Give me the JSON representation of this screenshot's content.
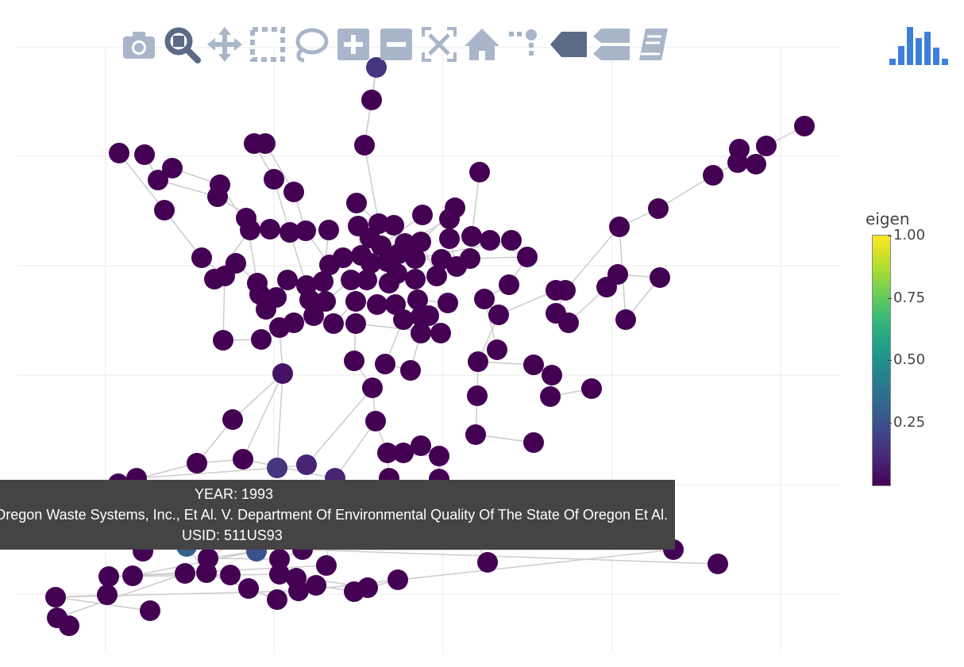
{
  "toolbar": {
    "buttons": [
      {
        "name": "camera-icon",
        "label": "Download plot as a png"
      },
      {
        "name": "zoom-icon",
        "label": "Zoom"
      },
      {
        "name": "pan-icon",
        "label": "Pan"
      },
      {
        "name": "box-select-icon",
        "label": "Box Select"
      },
      {
        "name": "lasso-select-icon",
        "label": "Lasso Select"
      },
      {
        "name": "zoom-in-icon",
        "label": "Zoom in"
      },
      {
        "name": "zoom-out-icon",
        "label": "Zoom out"
      },
      {
        "name": "autoscale-icon",
        "label": "Autoscale"
      },
      {
        "name": "home-icon",
        "label": "Reset axes"
      },
      {
        "name": "spike-lines-icon",
        "label": "Toggle Spike Lines"
      },
      {
        "name": "hover-closest-icon",
        "label": "Show closest data on hover"
      },
      {
        "name": "hover-compare-icon",
        "label": "Compare data on hover"
      },
      {
        "name": "edit-chart-icon",
        "label": "Edit chart"
      }
    ],
    "active": "zoom-icon",
    "icon_color": "#a9b6c9",
    "active_color": "#5b6a85",
    "logo_color": "#3f7fdc",
    "logo_icon": "plotly-bars-logo-icon"
  },
  "tooltip": {
    "line1": "YEAR: 1993",
    "line2": "Oregon Waste Systems, Inc., Et Al. V. Department Of Environmental Quality Of The State Of Oregon Et Al.",
    "line3": "USID: 511US93"
  },
  "chart_data": {
    "type": "scatter",
    "title": "",
    "xlabel": "",
    "ylabel": "",
    "grid": true,
    "node_color": "#440154",
    "edge_color": "#cccccc",
    "colorbar": {
      "title": "eigen",
      "ticks": [
        "1.00",
        "0.75",
        "0.50",
        "0.25"
      ],
      "tick_values": [
        1.0,
        0.75,
        0.5,
        0.25
      ],
      "range": [
        0.0,
        1.0
      ],
      "colorscale": "viridis",
      "placement": "right"
    },
    "nodes": [
      [
        474,
        85,
        0.15
      ],
      [
        468,
        126,
        0.0
      ],
      [
        459,
        183,
        0.0
      ],
      [
        150,
        193,
        0.0
      ],
      [
        182,
        195,
        0.0
      ],
      [
        217,
        212,
        0.0
      ],
      [
        199,
        227,
        0.0
      ],
      [
        207,
        265,
        0.0
      ],
      [
        277,
        233,
        0.0
      ],
      [
        274,
        248,
        0.0
      ],
      [
        320,
        181,
        0.0
      ],
      [
        334,
        181,
        0.0
      ],
      [
        345,
        226,
        0.0
      ],
      [
        370,
        242,
        0.0
      ],
      [
        604,
        217,
        0.0
      ],
      [
        449,
        256,
        0.0
      ],
      [
        573,
        262,
        0.0
      ],
      [
        532,
        271,
        0.0
      ],
      [
        566,
        276,
        0.0
      ],
      [
        310,
        275,
        0.0
      ],
      [
        315,
        290,
        0.0
      ],
      [
        340,
        289,
        0.0
      ],
      [
        365,
        293,
        0.0
      ],
      [
        385,
        291,
        0.0
      ],
      [
        414,
        290,
        0.0
      ],
      [
        451,
        285,
        0.0
      ],
      [
        477,
        282,
        0.0
      ],
      [
        496,
        284,
        0.0
      ],
      [
        466,
        300,
        0.0
      ],
      [
        480,
        310,
        0.0
      ],
      [
        510,
        307,
        0.0
      ],
      [
        530,
        305,
        0.0
      ],
      [
        566,
        301,
        0.0
      ],
      [
        594,
        298,
        0.0
      ],
      [
        617,
        303,
        0.0
      ],
      [
        644,
        303,
        0.0
      ],
      [
        254,
        325,
        0.0
      ],
      [
        297,
        332,
        0.0
      ],
      [
        270,
        352,
        0.0
      ],
      [
        283,
        348,
        0.0
      ],
      [
        324,
        357,
        0.0
      ],
      [
        327,
        371,
        0.0
      ],
      [
        335,
        390,
        0.0
      ],
      [
        348,
        375,
        0.0
      ],
      [
        362,
        353,
        0.0
      ],
      [
        386,
        360,
        0.0
      ],
      [
        407,
        355,
        0.0
      ],
      [
        415,
        334,
        0.0
      ],
      [
        432,
        325,
        0.0
      ],
      [
        455,
        322,
        0.0
      ],
      [
        467,
        332,
        0.0
      ],
      [
        488,
        330,
        0.0
      ],
      [
        502,
        320,
        0.0
      ],
      [
        523,
        326,
        0.0
      ],
      [
        556,
        327,
        0.0
      ],
      [
        575,
        336,
        0.0
      ],
      [
        592,
        326,
        0.0
      ],
      [
        664,
        324,
        0.0
      ],
      [
        550,
        348,
        0.0
      ],
      [
        523,
        352,
        0.0
      ],
      [
        500,
        345,
        0.0
      ],
      [
        490,
        357,
        0.0
      ],
      [
        462,
        353,
        0.0
      ],
      [
        442,
        353,
        0.0
      ],
      [
        410,
        380,
        0.0
      ],
      [
        390,
        378,
        0.0
      ],
      [
        395,
        398,
        0.0
      ],
      [
        420,
        408,
        0.0
      ],
      [
        448,
        380,
        0.0
      ],
      [
        475,
        384,
        0.0
      ],
      [
        498,
        384,
        0.0
      ],
      [
        526,
        378,
        0.0
      ],
      [
        564,
        382,
        0.0
      ],
      [
        508,
        403,
        0.0
      ],
      [
        530,
        399,
        0.0
      ],
      [
        540,
        398,
        0.0
      ],
      [
        530,
        420,
        0.0
      ],
      [
        555,
        420,
        0.0
      ],
      [
        448,
        408,
        0.0
      ],
      [
        370,
        407,
        0.0
      ],
      [
        352,
        413,
        0.0
      ],
      [
        329,
        428,
        0.0
      ],
      [
        281,
        429,
        0.0
      ],
      [
        641,
        359,
        0.0
      ],
      [
        610,
        377,
        0.0
      ],
      [
        628,
        397,
        0.0
      ],
      [
        700,
        366,
        0.0
      ],
      [
        712,
        366,
        0.0
      ],
      [
        700,
        395,
        0.0
      ],
      [
        716,
        407,
        0.0
      ],
      [
        764,
        362,
        0.0
      ],
      [
        778,
        346,
        0.0
      ],
      [
        831,
        350,
        0.0
      ],
      [
        788,
        403,
        0.0
      ],
      [
        780,
        286,
        0.0
      ],
      [
        829,
        263,
        0.0
      ],
      [
        898,
        221,
        0.0
      ],
      [
        929,
        205,
        0.0
      ],
      [
        931,
        188,
        0.0
      ],
      [
        952,
        207,
        0.0
      ],
      [
        965,
        184,
        0.0
      ],
      [
        1013,
        159,
        0.0
      ],
      [
        356,
        471,
        0.05
      ],
      [
        446,
        455,
        0.0
      ],
      [
        485,
        459,
        0.0
      ],
      [
        517,
        467,
        0.0
      ],
      [
        602,
        456,
        0.0
      ],
      [
        626,
        441,
        0.0
      ],
      [
        672,
        460,
        0.0
      ],
      [
        695,
        473,
        0.0
      ],
      [
        693,
        500,
        0.0
      ],
      [
        745,
        490,
        0.0
      ],
      [
        601,
        499,
        0.0
      ],
      [
        469,
        489,
        0.0
      ],
      [
        293,
        529,
        0.0
      ],
      [
        473,
        531,
        0.0
      ],
      [
        599,
        548,
        0.0
      ],
      [
        672,
        558,
        0.0
      ],
      [
        488,
        571,
        0.0
      ],
      [
        508,
        571,
        0.0
      ],
      [
        530,
        562,
        0.0
      ],
      [
        553,
        575,
        0.0
      ],
      [
        553,
        604,
        0.0
      ],
      [
        490,
        603,
        0.0
      ],
      [
        248,
        584,
        0.0
      ],
      [
        306,
        579,
        0.0
      ],
      [
        349,
        590,
        0.15
      ],
      [
        386,
        586,
        0.1
      ],
      [
        422,
        603,
        0.1
      ],
      [
        149,
        610,
        0.0
      ],
      [
        172,
        603,
        0.0
      ],
      [
        180,
        695,
        0.0
      ],
      [
        235,
        689,
        0.3
      ],
      [
        262,
        704,
        0.0
      ],
      [
        323,
        695,
        0.25
      ],
      [
        352,
        705,
        0.0
      ],
      [
        381,
        693,
        0.0
      ],
      [
        411,
        713,
        0.0
      ],
      [
        614,
        709,
        0.0
      ],
      [
        848,
        693,
        0.0
      ],
      [
        904,
        711,
        0.0
      ],
      [
        137,
        727,
        0.0
      ],
      [
        167,
        726,
        0.0
      ],
      [
        233,
        723,
        0.0
      ],
      [
        260,
        722,
        0.0
      ],
      [
        290,
        725,
        0.0
      ],
      [
        313,
        742,
        0.0
      ],
      [
        352,
        724,
        0.0
      ],
      [
        373,
        729,
        0.0
      ],
      [
        376,
        745,
        0.0
      ],
      [
        398,
        738,
        0.0
      ],
      [
        349,
        756,
        0.0
      ],
      [
        446,
        746,
        0.0
      ],
      [
        463,
        741,
        0.0
      ],
      [
        501,
        731,
        0.0
      ],
      [
        70,
        753,
        0.0
      ],
      [
        135,
        750,
        0.0
      ],
      [
        189,
        770,
        0.0
      ],
      [
        72,
        779,
        0.0
      ],
      [
        87,
        789,
        0.0
      ]
    ],
    "edges": [
      [
        0,
        1
      ],
      [
        1,
        2
      ],
      [
        2,
        26
      ],
      [
        3,
        7
      ],
      [
        4,
        6
      ],
      [
        5,
        6
      ],
      [
        6,
        9
      ],
      [
        7,
        36
      ],
      [
        8,
        20
      ],
      [
        9,
        21
      ],
      [
        10,
        12
      ],
      [
        11,
        13
      ],
      [
        12,
        22
      ],
      [
        13,
        23
      ],
      [
        14,
        33
      ],
      [
        15,
        26
      ],
      [
        16,
        31
      ],
      [
        17,
        29
      ],
      [
        18,
        30
      ],
      [
        19,
        40
      ],
      [
        20,
        38
      ],
      [
        21,
        24
      ],
      [
        22,
        45
      ],
      [
        23,
        47
      ],
      [
        24,
        46
      ],
      [
        25,
        49
      ],
      [
        26,
        50
      ],
      [
        27,
        52
      ],
      [
        28,
        62
      ],
      [
        29,
        60
      ],
      [
        30,
        61
      ],
      [
        31,
        58
      ],
      [
        32,
        55
      ],
      [
        33,
        56
      ],
      [
        34,
        57
      ],
      [
        35,
        53
      ],
      [
        36,
        39
      ],
      [
        37,
        40
      ],
      [
        38,
        39
      ],
      [
        39,
        82
      ],
      [
        40,
        41
      ],
      [
        41,
        42
      ],
      [
        42,
        43
      ],
      [
        43,
        44
      ],
      [
        44,
        45
      ],
      [
        45,
        46
      ],
      [
        46,
        47
      ],
      [
        47,
        48
      ],
      [
        48,
        49
      ],
      [
        49,
        50
      ],
      [
        50,
        51
      ],
      [
        51,
        52
      ],
      [
        52,
        53
      ],
      [
        53,
        54
      ],
      [
        54,
        55
      ],
      [
        55,
        56
      ],
      [
        56,
        57
      ],
      [
        58,
        59
      ],
      [
        59,
        60
      ],
      [
        60,
        61
      ],
      [
        61,
        62
      ],
      [
        62,
        63
      ],
      [
        63,
        64
      ],
      [
        64,
        65
      ],
      [
        65,
        66
      ],
      [
        66,
        67
      ],
      [
        67,
        68
      ],
      [
        68,
        69
      ],
      [
        69,
        70
      ],
      [
        70,
        71
      ],
      [
        71,
        72
      ],
      [
        72,
        73
      ],
      [
        73,
        74
      ],
      [
        74,
        75
      ],
      [
        75,
        76
      ],
      [
        76,
        77
      ],
      [
        77,
        78
      ],
      [
        78,
        79
      ],
      [
        79,
        80
      ],
      [
        80,
        81
      ],
      [
        81,
        82
      ],
      [
        83,
        84
      ],
      [
        84,
        85
      ],
      [
        85,
        86
      ],
      [
        86,
        87
      ],
      [
        87,
        88
      ],
      [
        88,
        89
      ],
      [
        89,
        90
      ],
      [
        90,
        91
      ],
      [
        91,
        92
      ],
      [
        92,
        93
      ],
      [
        93,
        94
      ],
      [
        94,
        95
      ],
      [
        95,
        96
      ],
      [
        96,
        97
      ],
      [
        97,
        98
      ],
      [
        98,
        99
      ],
      [
        99,
        100
      ],
      [
        100,
        101
      ],
      [
        102,
        80
      ],
      [
        103,
        78
      ],
      [
        104,
        73
      ],
      [
        105,
        76
      ],
      [
        106,
        85
      ],
      [
        107,
        84
      ],
      [
        108,
        106
      ],
      [
        109,
        108
      ],
      [
        110,
        109
      ],
      [
        111,
        110
      ],
      [
        112,
        106
      ],
      [
        113,
        103
      ],
      [
        114,
        102
      ],
      [
        115,
        113
      ],
      [
        116,
        112
      ],
      [
        117,
        116
      ],
      [
        118,
        115
      ],
      [
        119,
        118
      ],
      [
        120,
        119
      ],
      [
        121,
        120
      ],
      [
        122,
        121
      ],
      [
        123,
        118
      ],
      [
        124,
        114
      ],
      [
        125,
        124
      ],
      [
        126,
        102
      ],
      [
        127,
        126
      ],
      [
        128,
        115
      ],
      [
        129,
        124
      ],
      [
        130,
        126
      ],
      [
        131,
        129
      ],
      [
        132,
        130
      ],
      [
        133,
        128
      ],
      [
        134,
        133
      ],
      [
        135,
        133
      ],
      [
        136,
        135
      ],
      [
        137,
        128
      ],
      [
        138,
        122
      ],
      [
        139,
        136
      ],
      [
        140,
        136
      ],
      [
        141,
        137
      ],
      [
        142,
        134
      ],
      [
        143,
        141
      ],
      [
        144,
        132
      ],
      [
        145,
        141
      ],
      [
        146,
        144
      ],
      [
        147,
        145
      ],
      [
        148,
        147
      ],
      [
        149,
        139
      ],
      [
        150,
        149
      ],
      [
        151,
        146
      ],
      [
        152,
        150
      ],
      [
        153,
        147
      ],
      [
        154,
        152
      ],
      [
        155,
        149
      ],
      [
        156,
        155
      ],
      [
        157,
        155
      ],
      [
        158,
        143
      ],
      [
        159,
        158
      ],
      [
        160,
        146
      ],
      [
        161,
        160
      ],
      [
        162,
        161
      ],
      [
        163,
        162
      ],
      [
        164,
        163
      ],
      [
        0,
        2
      ],
      [
        87,
        94
      ],
      [
        5,
        8
      ],
      [
        57,
        83
      ],
      [
        104,
        105
      ],
      [
        118,
        121
      ],
      [
        125,
        139
      ],
      [
        102,
        125
      ],
      [
        113,
        127
      ]
    ]
  }
}
